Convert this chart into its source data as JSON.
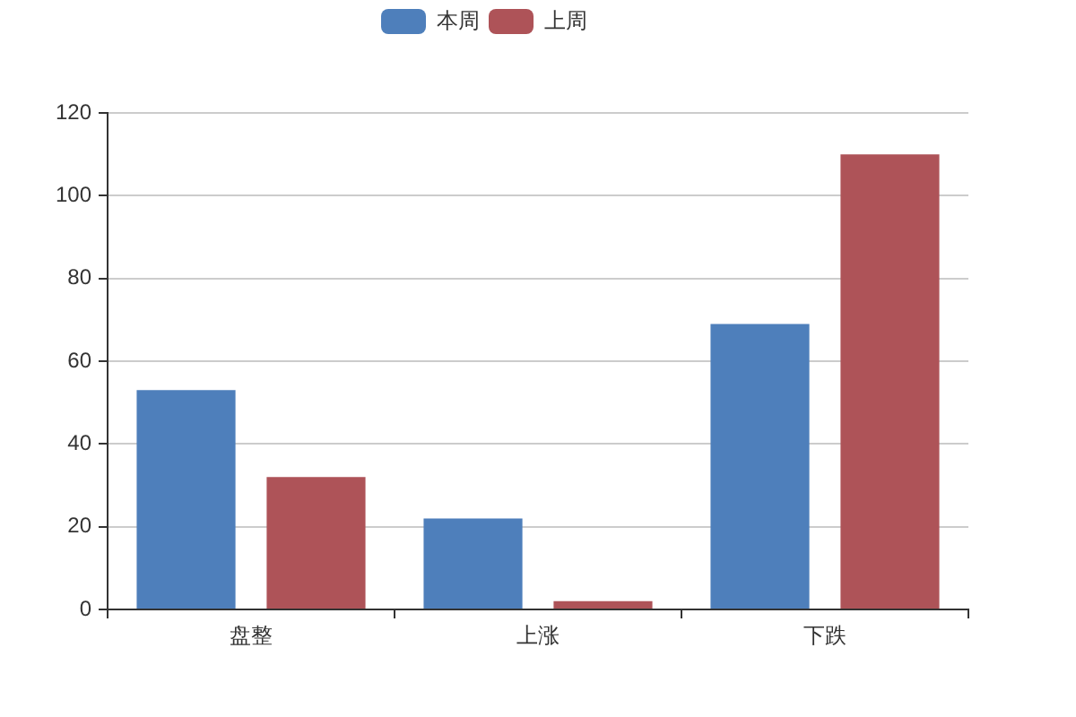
{
  "chart_data": {
    "type": "bar",
    "categories": [
      "盘整",
      "上涨",
      "下跌"
    ],
    "series": [
      {
        "name": "本周",
        "color": "#4e7fbb",
        "values": [
          53,
          22,
          69
        ]
      },
      {
        "name": "上周",
        "color": "#ae5358",
        "values": [
          32,
          2,
          110
        ]
      }
    ],
    "ylim": [
      0,
      120
    ],
    "yticks": [
      0,
      20,
      40,
      60,
      80,
      100,
      120
    ],
    "grid": "y",
    "legend": "top"
  }
}
